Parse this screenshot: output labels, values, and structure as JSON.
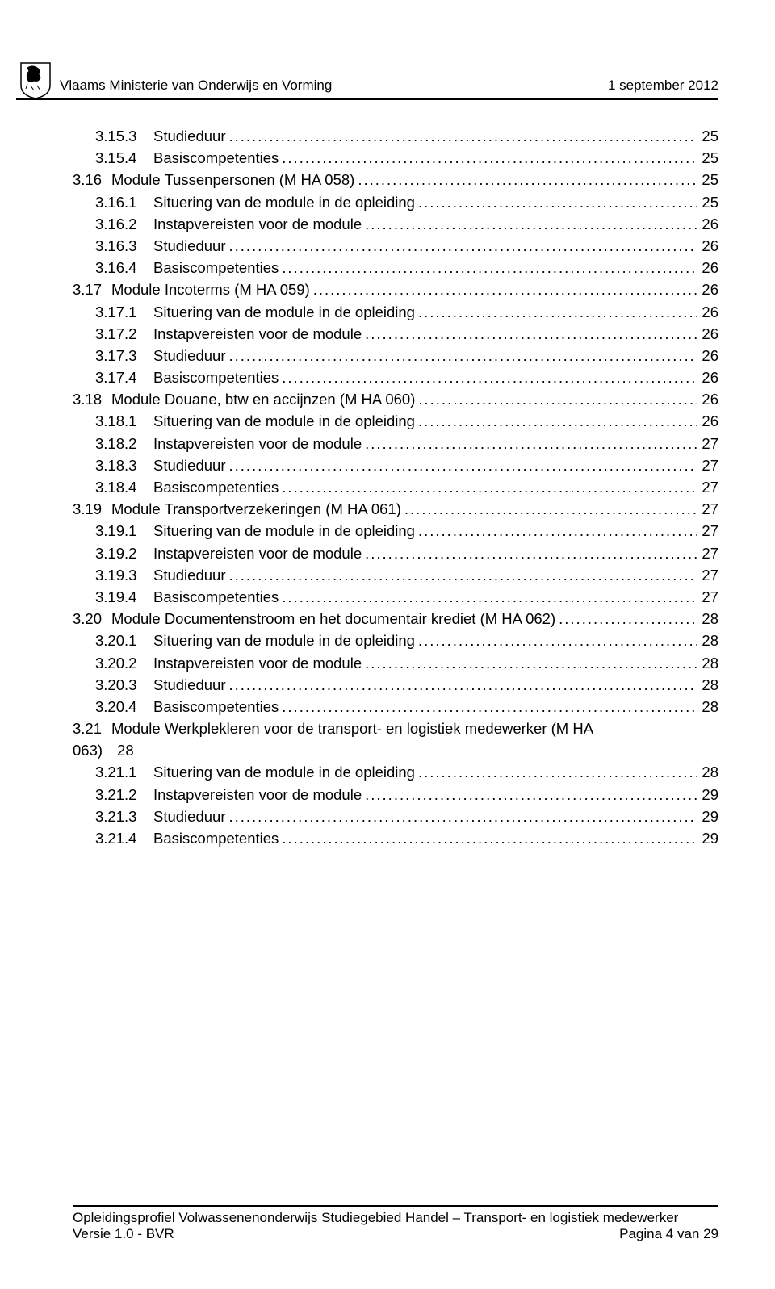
{
  "header": {
    "left": "Vlaams Ministerie van Onderwijs en Vorming",
    "right": "1 september 2012"
  },
  "toc": [
    {
      "level": 2,
      "num": "3.15.3",
      "title": "Studieduur",
      "page": "25"
    },
    {
      "level": 2,
      "num": "3.15.4",
      "title": "Basiscompetenties",
      "page": "25"
    },
    {
      "level": 1,
      "num": "3.16",
      "title": "Module Tussenpersonen (M HA 058)",
      "page": "25"
    },
    {
      "level": 2,
      "num": "3.16.1",
      "title": "Situering van de module in de opleiding",
      "page": "25"
    },
    {
      "level": 2,
      "num": "3.16.2",
      "title": "Instapvereisten voor de module",
      "page": "26"
    },
    {
      "level": 2,
      "num": "3.16.3",
      "title": "Studieduur",
      "page": "26"
    },
    {
      "level": 2,
      "num": "3.16.4",
      "title": "Basiscompetenties",
      "page": "26"
    },
    {
      "level": 1,
      "num": "3.17",
      "title": "Module Incoterms (M HA 059)",
      "page": "26"
    },
    {
      "level": 2,
      "num": "3.17.1",
      "title": "Situering van de module in de opleiding",
      "page": "26"
    },
    {
      "level": 2,
      "num": "3.17.2",
      "title": "Instapvereisten voor de module",
      "page": "26"
    },
    {
      "level": 2,
      "num": "3.17.3",
      "title": "Studieduur",
      "page": "26"
    },
    {
      "level": 2,
      "num": "3.17.4",
      "title": "Basiscompetenties",
      "page": "26"
    },
    {
      "level": 1,
      "num": "3.18",
      "title": "Module Douane, btw en accijnzen (M HA 060)",
      "page": "26"
    },
    {
      "level": 2,
      "num": "3.18.1",
      "title": "Situering van de module in de opleiding",
      "page": "26"
    },
    {
      "level": 2,
      "num": "3.18.2",
      "title": "Instapvereisten voor de module",
      "page": "27"
    },
    {
      "level": 2,
      "num": "3.18.3",
      "title": "Studieduur",
      "page": "27"
    },
    {
      "level": 2,
      "num": "3.18.4",
      "title": "Basiscompetenties",
      "page": "27"
    },
    {
      "level": 1,
      "num": "3.19",
      "title": "Module Transportverzekeringen (M HA 061)",
      "page": "27"
    },
    {
      "level": 2,
      "num": "3.19.1",
      "title": "Situering van de module in de opleiding",
      "page": "27"
    },
    {
      "level": 2,
      "num": "3.19.2",
      "title": "Instapvereisten voor de module",
      "page": "27"
    },
    {
      "level": 2,
      "num": "3.19.3",
      "title": "Studieduur",
      "page": "27"
    },
    {
      "level": 2,
      "num": "3.19.4",
      "title": "Basiscompetenties",
      "page": "27"
    },
    {
      "level": 1,
      "num": "3.20",
      "title": "Module Documentenstroom en het documentair krediet (M HA 062)",
      "page": "28"
    },
    {
      "level": 2,
      "num": "3.20.1",
      "title": "Situering van de module in de opleiding",
      "page": "28"
    },
    {
      "level": 2,
      "num": "3.20.2",
      "title": "Instapvereisten voor de module",
      "page": "28"
    },
    {
      "level": 2,
      "num": "3.20.3",
      "title": "Studieduur",
      "page": "28"
    },
    {
      "level": 2,
      "num": "3.20.4",
      "title": "Basiscompetenties",
      "page": "28"
    }
  ],
  "wrapped_entry": {
    "num": "3.21",
    "title_line1": "Module Werkplekleren voor de transport- en logistiek medewerker (M HA",
    "title_line2_prefix": "063)",
    "title_line2_page": "28"
  },
  "toc_after": [
    {
      "level": 2,
      "num": "3.21.1",
      "title": "Situering van de module in de opleiding",
      "page": "28"
    },
    {
      "level": 2,
      "num": "3.21.2",
      "title": "Instapvereisten voor de module",
      "page": "29"
    },
    {
      "level": 2,
      "num": "3.21.3",
      "title": "Studieduur",
      "page": "29"
    },
    {
      "level": 2,
      "num": "3.21.4",
      "title": "Basiscompetenties",
      "page": "29"
    }
  ],
  "footer": {
    "line1": "Opleidingsprofiel Volwassenenonderwijs Studiegebied Handel – Transport- en logistiek medewerker",
    "line2_left": "Versie 1.0 - BVR",
    "line2_right": "Pagina 4 van 29"
  },
  "style": {
    "text_color": "#000000",
    "background_color": "#ffffff",
    "font_family": "Arial",
    "body_fontsize_pt": 14,
    "header_fontsize_pt": 13,
    "footer_fontsize_pt": 13
  }
}
